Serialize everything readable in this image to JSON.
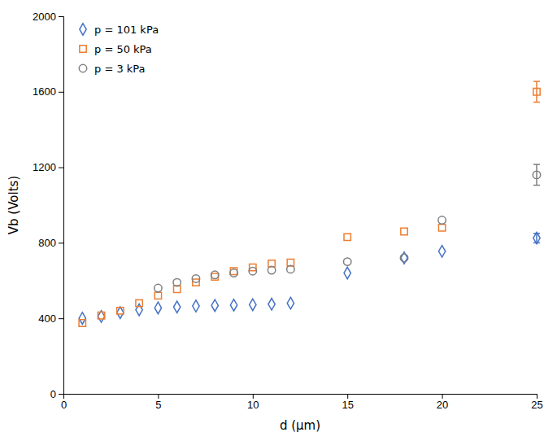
{
  "chart_data": {
    "type": "scatter",
    "x_label": "d (μm)",
    "y_label": "Vb (Volts)",
    "xlim": [
      0,
      25
    ],
    "ylim": [
      0,
      2000
    ],
    "xticks": [
      0,
      5,
      10,
      15,
      20,
      25
    ],
    "yticks": [
      0,
      400,
      800,
      1200,
      1600,
      2000
    ],
    "grid": false,
    "legend": "upper left",
    "series": [
      {
        "name": "p = 101 kPa",
        "color": "#4472C4",
        "marker": "diamond",
        "x": [
          1,
          2,
          3,
          4,
          5,
          6,
          7,
          8,
          9,
          10,
          11,
          12,
          15,
          18,
          20,
          25
        ],
        "values": [
          400,
          410,
          430,
          445,
          455,
          460,
          465,
          468,
          470,
          472,
          475,
          480,
          640,
          720,
          755,
          825
        ],
        "errors": [
          null,
          null,
          null,
          null,
          null,
          null,
          null,
          null,
          null,
          null,
          null,
          null,
          null,
          null,
          null,
          25
        ]
      },
      {
        "name": "p = 50 kPa",
        "color": "#ED7D31",
        "marker": "square",
        "x": [
          1,
          2,
          3,
          4,
          5,
          6,
          7,
          8,
          9,
          10,
          11,
          12,
          15,
          18,
          20,
          25
        ],
        "values": [
          375,
          415,
          440,
          480,
          520,
          555,
          590,
          620,
          650,
          670,
          690,
          695,
          830,
          860,
          880,
          1600
        ],
        "errors": [
          null,
          null,
          null,
          null,
          null,
          null,
          null,
          null,
          null,
          null,
          null,
          null,
          null,
          null,
          null,
          55
        ]
      },
      {
        "name": "p = 3 kPa",
        "color": "#7F7F7F",
        "marker": "circle",
        "x": [
          5,
          6,
          7,
          8,
          9,
          10,
          11,
          12,
          15,
          18,
          20,
          25
        ],
        "values": [
          560,
          590,
          610,
          630,
          640,
          650,
          655,
          660,
          700,
          720,
          920,
          1160
        ],
        "errors": [
          null,
          null,
          null,
          null,
          null,
          null,
          null,
          null,
          null,
          null,
          null,
          55
        ]
      }
    ]
  }
}
